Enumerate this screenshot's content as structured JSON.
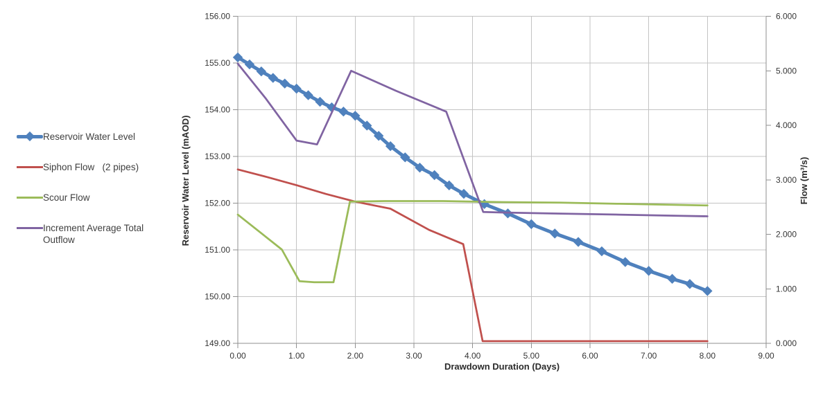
{
  "chart_data": {
    "type": "line",
    "title": "",
    "xlabel": "Drawdown Duration (Days)",
    "ylabel_left": "Reservoir Water Level (mAOD)",
    "ylabel_right": "Flow (m³/s)",
    "x_range": [
      0,
      9
    ],
    "left_range": [
      149,
      156
    ],
    "right_range": [
      0,
      6
    ],
    "x_ticks": [
      "0.00",
      "1.00",
      "2.00",
      "3.00",
      "4.00",
      "5.00",
      "6.00",
      "7.00",
      "8.00",
      "9.00"
    ],
    "left_ticks": [
      "149.00",
      "150.00",
      "151.00",
      "152.00",
      "153.00",
      "154.00",
      "155.00",
      "156.00"
    ],
    "right_ticks": [
      "0.000",
      "1.000",
      "2.000",
      "3.000",
      "4.000",
      "5.000",
      "6.000"
    ],
    "grid": true,
    "legend_position": "left",
    "colors": {
      "reservoir": "#4F81BD",
      "siphon": "#C0504D",
      "scour": "#9BBB59",
      "outflow": "#8064A2",
      "gridline": "#c3c3c3",
      "axisline": "#8f8f8f"
    },
    "series": [
      {
        "name": "Reservoir Water Level",
        "axis": "left",
        "color": "#4F81BD",
        "width": 5,
        "marker": "diamond",
        "points": [
          [
            0,
            155.12
          ],
          [
            0.2,
            154.97
          ],
          [
            0.4,
            154.82
          ],
          [
            0.6,
            154.68
          ],
          [
            0.8,
            154.56
          ],
          [
            1.0,
            154.45
          ],
          [
            1.2,
            154.31
          ],
          [
            1.4,
            154.17
          ],
          [
            1.6,
            154.05
          ],
          [
            1.8,
            153.96
          ],
          [
            2.0,
            153.87
          ],
          [
            2.2,
            153.66
          ],
          [
            2.4,
            153.44
          ],
          [
            2.6,
            153.22
          ],
          [
            2.85,
            152.98
          ],
          [
            3.1,
            152.76
          ],
          [
            3.35,
            152.6
          ],
          [
            3.6,
            152.38
          ],
          [
            3.85,
            152.2
          ],
          [
            4.2,
            151.98
          ],
          [
            4.6,
            151.78
          ],
          [
            5.0,
            151.55
          ],
          [
            5.4,
            151.35
          ],
          [
            5.8,
            151.17
          ],
          [
            6.2,
            150.97
          ],
          [
            6.6,
            150.74
          ],
          [
            7.0,
            150.55
          ],
          [
            7.4,
            150.38
          ],
          [
            7.7,
            150.27
          ],
          [
            8.0,
            150.12
          ]
        ]
      },
      {
        "name": "Siphon Flow   (2 pipes)",
        "axis": "right",
        "color": "#C0504D",
        "width": 2.75,
        "marker": "none",
        "points": [
          [
            0,
            3.19
          ],
          [
            0.5,
            3.05
          ],
          [
            1.0,
            2.9
          ],
          [
            1.5,
            2.74
          ],
          [
            2.0,
            2.6
          ],
          [
            2.6,
            2.47
          ],
          [
            3.26,
            2.08
          ],
          [
            3.84,
            1.82
          ],
          [
            4.17,
            0.04
          ],
          [
            8.0,
            0.04
          ]
        ]
      },
      {
        "name": "Scour Flow",
        "axis": "right",
        "color": "#9BBB59",
        "width": 2.75,
        "marker": "none",
        "points": [
          [
            0,
            2.36
          ],
          [
            0.75,
            1.72
          ],
          [
            1.05,
            1.14
          ],
          [
            1.3,
            1.12
          ],
          [
            1.63,
            1.12
          ],
          [
            1.91,
            2.6
          ],
          [
            2.5,
            2.61
          ],
          [
            3.5,
            2.61
          ],
          [
            4.5,
            2.59
          ],
          [
            5.5,
            2.58
          ],
          [
            6.5,
            2.56
          ],
          [
            7.5,
            2.54
          ],
          [
            8.0,
            2.53
          ]
        ]
      },
      {
        "name": "Increment Average Total Outflow",
        "axis": "right",
        "color": "#8064A2",
        "width": 2.75,
        "marker": "none",
        "points": [
          [
            0,
            5.13
          ],
          [
            0.47,
            4.5
          ],
          [
            1.0,
            3.72
          ],
          [
            1.35,
            3.65
          ],
          [
            1.93,
            5.0
          ],
          [
            2.7,
            4.63
          ],
          [
            3.55,
            4.25
          ],
          [
            4.18,
            2.41
          ],
          [
            4.5,
            2.4
          ],
          [
            5.5,
            2.38
          ],
          [
            6.5,
            2.36
          ],
          [
            7.5,
            2.34
          ],
          [
            8.0,
            2.33
          ]
        ]
      }
    ]
  }
}
